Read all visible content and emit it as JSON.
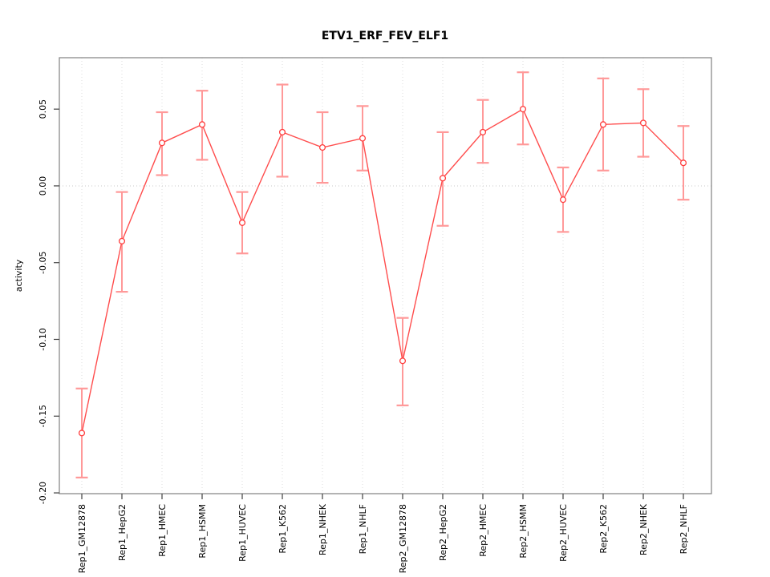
{
  "title": "ETV1_ERF_FEV_ELF1",
  "chart_data": {
    "type": "line",
    "title": "ETV1_ERF_FEV_ELF1",
    "xlabel": "",
    "ylabel": "activity",
    "legend_position": "none",
    "grid": "dotted-vertical-per-category-and-dotted-zero-line",
    "categories": [
      "Rep1_GM12878",
      "Rep1_HepG2",
      "Rep1_HMEC",
      "Rep1_HSMM",
      "Rep1_HUVEC",
      "Rep1_K562",
      "Rep1_NHEK",
      "Rep1_NHLF",
      "Rep2_GM12878",
      "Rep2_HepG2",
      "Rep2_HMEC",
      "Rep2_HSMM",
      "Rep2_HUVEC",
      "Rep2_K562",
      "Rep2_NHEK",
      "Rep2_NHLF"
    ],
    "series": [
      {
        "name": "activity",
        "marker": "open-circle",
        "values": [
          -0.161,
          -0.036,
          0.028,
          0.04,
          -0.024,
          0.035,
          0.025,
          0.031,
          -0.114,
          0.005,
          0.035,
          0.05,
          -0.009,
          0.04,
          0.041,
          0.015
        ],
        "upper": [
          -0.132,
          -0.004,
          0.048,
          0.062,
          -0.004,
          0.066,
          0.048,
          0.052,
          -0.086,
          0.035,
          0.056,
          0.074,
          0.012,
          0.07,
          0.063,
          0.039
        ],
        "lower": [
          -0.19,
          -0.069,
          0.007,
          0.017,
          -0.044,
          0.006,
          0.002,
          0.01,
          -0.143,
          -0.026,
          0.015,
          0.027,
          -0.03,
          0.01,
          0.019,
          -0.009
        ]
      }
    ],
    "ylim": [
      -0.2005,
      0.0835
    ],
    "yticks": [
      {
        "value": 0.05,
        "label": "0.05"
      },
      {
        "value": 0.0,
        "label": "0.00"
      },
      {
        "value": -0.05,
        "label": "-0.05"
      },
      {
        "value": -0.1,
        "label": "-0.10"
      },
      {
        "value": -0.15,
        "label": "-0.15"
      },
      {
        "value": -0.2,
        "label": "-0.20"
      }
    ],
    "zero_line": true,
    "colors": {
      "line": "#ff4d4d",
      "marker_stroke": "#ff3d3d",
      "marker_fill": "#ffffff",
      "error_bar": "#ff9999",
      "gridline": "#dcdcdc",
      "zero_line": "#c8c8c8",
      "box": "#8a8a8a",
      "tick": "#404040",
      "text": "#000000"
    }
  }
}
